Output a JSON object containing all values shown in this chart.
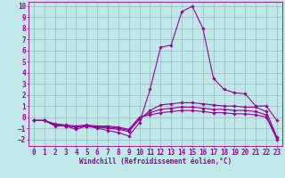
{
  "xlabel": "Windchill (Refroidissement éolien,°C)",
  "bg_color": "#c0e8e8",
  "line_color": "#990099",
  "grid_color": "#99bbbb",
  "x_ticks": [
    0,
    1,
    2,
    3,
    4,
    5,
    6,
    7,
    8,
    9,
    10,
    11,
    12,
    13,
    14,
    15,
    16,
    17,
    18,
    19,
    20,
    21,
    22,
    23
  ],
  "y_ticks": [
    -2,
    -1,
    0,
    1,
    2,
    3,
    4,
    5,
    6,
    7,
    8,
    9,
    10
  ],
  "xlim": [
    -0.5,
    23.5
  ],
  "ylim": [
    -2.6,
    10.4
  ],
  "lines": [
    {
      "x": [
        0,
        1,
        2,
        3,
        4,
        5,
        6,
        7,
        8,
        9,
        10,
        11,
        12,
        13,
        14,
        15,
        16,
        17,
        18,
        19,
        20,
        21,
        22,
        23
      ],
      "y": [
        -0.3,
        -0.3,
        -0.8,
        -0.8,
        -1.1,
        -0.8,
        -1.0,
        -1.2,
        -1.4,
        -1.7,
        -0.5,
        2.5,
        6.3,
        6.5,
        9.5,
        10.0,
        8.0,
        3.5,
        2.5,
        2.2,
        2.1,
        1.0,
        1.0,
        -0.3
      ]
    },
    {
      "x": [
        0,
        1,
        2,
        3,
        4,
        5,
        6,
        7,
        8,
        9,
        10,
        11,
        12,
        13,
        14,
        15,
        16,
        17,
        18,
        19,
        20,
        21,
        22,
        23
      ],
      "y": [
        -0.3,
        -0.3,
        -0.7,
        -0.8,
        -0.9,
        -0.8,
        -0.9,
        -1.0,
        -1.1,
        -1.3,
        -0.2,
        0.6,
        1.1,
        1.2,
        1.3,
        1.3,
        1.2,
        1.1,
        1.0,
        1.0,
        0.9,
        0.9,
        0.5,
        -1.8
      ]
    },
    {
      "x": [
        0,
        1,
        2,
        3,
        4,
        5,
        6,
        7,
        8,
        9,
        10,
        11,
        12,
        13,
        14,
        15,
        16,
        17,
        18,
        19,
        20,
        21,
        22,
        23
      ],
      "y": [
        -0.3,
        -0.3,
        -0.7,
        -0.8,
        -0.9,
        -0.8,
        -0.9,
        -0.9,
        -1.0,
        -1.2,
        -0.1,
        0.4,
        0.7,
        0.8,
        0.9,
        0.9,
        0.8,
        0.7,
        0.7,
        0.6,
        0.6,
        0.5,
        0.2,
        -1.9
      ]
    },
    {
      "x": [
        0,
        1,
        2,
        3,
        4,
        5,
        6,
        7,
        8,
        9,
        10,
        11,
        12,
        13,
        14,
        15,
        16,
        17,
        18,
        19,
        20,
        21,
        22,
        23
      ],
      "y": [
        -0.3,
        -0.3,
        -0.6,
        -0.7,
        -0.8,
        -0.7,
        -0.8,
        -0.8,
        -0.9,
        -1.1,
        0.0,
        0.2,
        0.4,
        0.5,
        0.6,
        0.6,
        0.5,
        0.4,
        0.4,
        0.3,
        0.3,
        0.2,
        0.0,
        -2.0
      ]
    }
  ],
  "marker": "D",
  "markersize": 1.8,
  "linewidth": 0.8,
  "xlabel_fontsize": 5.5,
  "tick_fontsize": 5.5
}
